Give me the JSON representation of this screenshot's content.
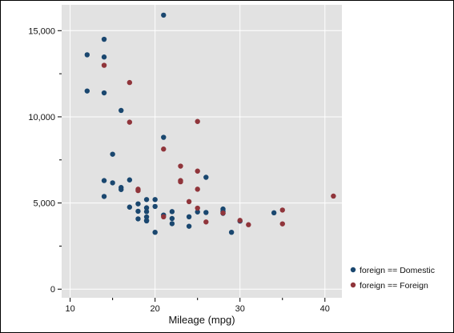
{
  "chart_data": {
    "type": "scatter",
    "title": "",
    "xlabel": "Mileage (mpg)",
    "ylabel": "",
    "xlim": [
      9,
      42
    ],
    "ylim": [
      -500,
      16500
    ],
    "x_ticks": [
      {
        "value": 10,
        "label": "10"
      },
      {
        "value": 20,
        "label": "20"
      },
      {
        "value": 30,
        "label": "30"
      },
      {
        "value": 40,
        "label": "40"
      }
    ],
    "y_ticks": [
      {
        "value": 0,
        "label": "0"
      },
      {
        "value": 5000,
        "label": "5,000"
      },
      {
        "value": 10000,
        "label": "10,000"
      },
      {
        "value": 15000,
        "label": "15,000"
      }
    ],
    "grid": true,
    "background_color": "#e2e2e2",
    "grid_color": "#ffffff",
    "legend_position": "right",
    "series": [
      {
        "name": "foreign == Domestic",
        "color": "#1a476f",
        "points": [
          [
            12,
            13600
          ],
          [
            12,
            11500
          ],
          [
            14,
            14500
          ],
          [
            14,
            13470
          ],
          [
            14,
            11390
          ],
          [
            14,
            6300
          ],
          [
            14,
            5380
          ],
          [
            15,
            7830
          ],
          [
            15,
            6170
          ],
          [
            16,
            10370
          ],
          [
            16,
            5900
          ],
          [
            16,
            5780
          ],
          [
            17,
            6340
          ],
          [
            17,
            4760
          ],
          [
            18,
            4950
          ],
          [
            18,
            4520
          ],
          [
            18,
            4080
          ],
          [
            19,
            5200
          ],
          [
            19,
            4720
          ],
          [
            19,
            4500
          ],
          [
            19,
            4190
          ],
          [
            19,
            3980
          ],
          [
            19,
            3960
          ],
          [
            20,
            5200
          ],
          [
            20,
            4800
          ],
          [
            20,
            3300
          ],
          [
            21,
            15900
          ],
          [
            21,
            8810
          ],
          [
            21,
            4300
          ],
          [
            22,
            4500
          ],
          [
            22,
            4100
          ],
          [
            22,
            3800
          ],
          [
            24,
            4200
          ],
          [
            24,
            3650
          ],
          [
            25,
            4480
          ],
          [
            26,
            6490
          ],
          [
            26,
            4450
          ],
          [
            28,
            4650
          ],
          [
            28,
            4510
          ],
          [
            28,
            4400
          ],
          [
            29,
            3300
          ],
          [
            30,
            3950
          ],
          [
            34,
            4430
          ]
        ]
      },
      {
        "name": "foreign == Foreign",
        "color": "#90353b",
        "points": [
          [
            14,
            12990
          ],
          [
            17,
            11990
          ],
          [
            17,
            9690
          ],
          [
            18,
            5800
          ],
          [
            18,
            5720
          ],
          [
            21,
            8130
          ],
          [
            21,
            4200
          ],
          [
            23,
            7140
          ],
          [
            23,
            6300
          ],
          [
            23,
            6230
          ],
          [
            24,
            5080
          ],
          [
            25,
            9730
          ],
          [
            25,
            6850
          ],
          [
            25,
            5800
          ],
          [
            25,
            4700
          ],
          [
            26,
            3900
          ],
          [
            28,
            4420
          ],
          [
            30,
            3990
          ],
          [
            31,
            3740
          ],
          [
            35,
            4590
          ],
          [
            35,
            3790
          ],
          [
            41,
            5400
          ]
        ]
      }
    ]
  }
}
